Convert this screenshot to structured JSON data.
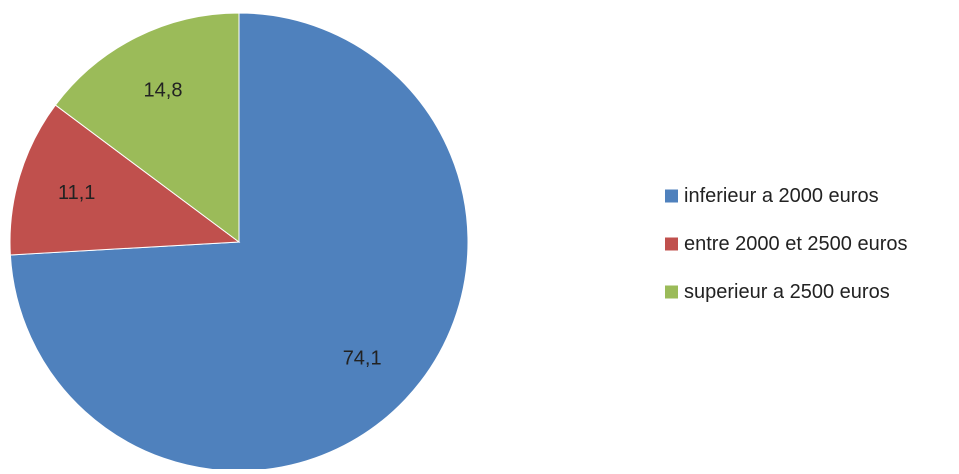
{
  "chart_data": {
    "type": "pie",
    "title": "",
    "slices": [
      {
        "label": "inferieur a 2000 euros",
        "value": 74.1,
        "value_label": "74,1",
        "color": "#4F81BD"
      },
      {
        "label": "entre 2000 et 2500 euros",
        "value": 11.1,
        "value_label": "11,1",
        "color": "#C0504D"
      },
      {
        "label": "superieur a 2500 euros",
        "value": 14.8,
        "value_label": "14,8",
        "color": "#9BBB59"
      }
    ],
    "start": "12 o'clock",
    "direction": "clockwise",
    "legend": {
      "position": "right"
    }
  }
}
